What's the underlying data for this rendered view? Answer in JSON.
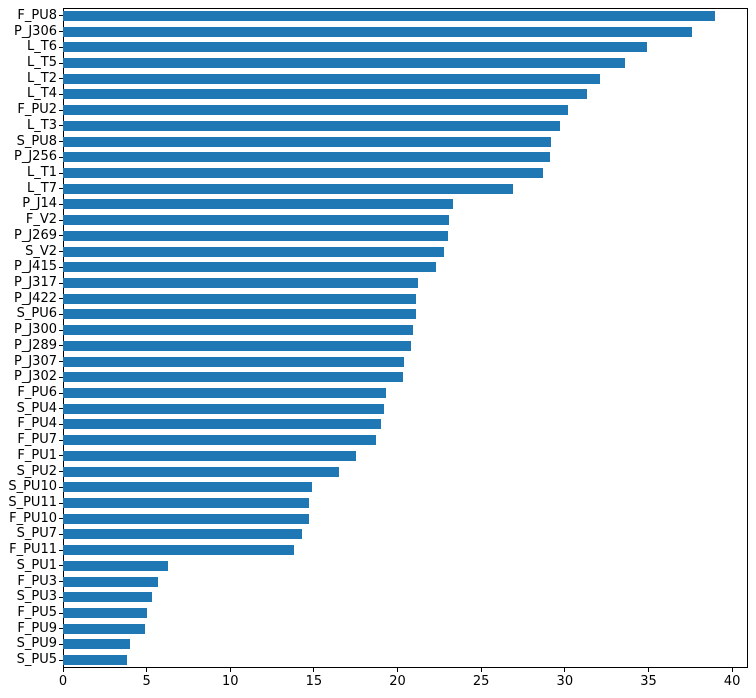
{
  "chart_data": {
    "type": "bar",
    "orientation": "horizontal",
    "title": "",
    "xlabel": "",
    "ylabel": "",
    "categories": [
      "F_PU8",
      "P_J306",
      "L_T6",
      "L_T5",
      "L_T2",
      "L_T4",
      "F_PU2",
      "L_T3",
      "S_PU8",
      "P_J256",
      "L_T1",
      "L_T7",
      "P_J14",
      "F_V2",
      "P_J269",
      "S_V2",
      "P_J415",
      "P_J317",
      "P_J422",
      "S_PU6",
      "P_J300",
      "P_J289",
      "P_J307",
      "P_J302",
      "F_PU6",
      "S_PU4",
      "F_PU4",
      "F_PU7",
      "F_PU1",
      "S_PU2",
      "S_PU10",
      "S_PU11",
      "F_PU10",
      "S_PU7",
      "F_PU11",
      "S_PU1",
      "F_PU3",
      "S_PU3",
      "F_PU5",
      "F_PU9",
      "S_PU9",
      "S_PU5"
    ],
    "values": [
      39.0,
      37.6,
      34.9,
      33.6,
      32.1,
      31.3,
      30.2,
      29.7,
      29.2,
      29.1,
      28.7,
      26.9,
      23.3,
      23.1,
      23.0,
      22.8,
      22.3,
      21.2,
      21.1,
      21.1,
      20.9,
      20.8,
      20.4,
      20.3,
      19.3,
      19.2,
      19.0,
      18.7,
      17.5,
      16.5,
      14.9,
      14.7,
      14.7,
      14.3,
      13.8,
      6.3,
      5.7,
      5.3,
      5.0,
      4.9,
      4.0,
      3.8
    ],
    "xticks": [
      0,
      5,
      10,
      15,
      20,
      25,
      30,
      35,
      40
    ],
    "xlim": [
      0,
      40.95
    ],
    "grid": false,
    "legend": null,
    "bar_color": "#1f77b4",
    "spine_color": "#000000",
    "tick_color": "#000000",
    "text_color": "#000000",
    "background_color": "#ffffff"
  }
}
